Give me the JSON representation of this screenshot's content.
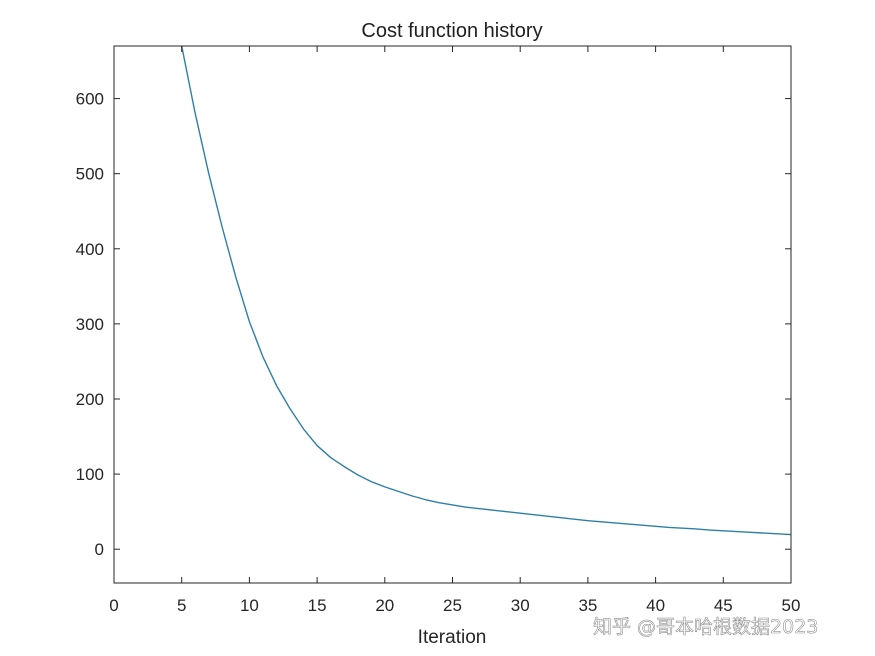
{
  "chart_data": {
    "type": "line",
    "title": "Cost function history",
    "xlabel": "Iteration",
    "ylabel": "",
    "xlim": [
      0,
      50
    ],
    "ylim": [
      -45,
      670
    ],
    "xticks": [
      0,
      5,
      10,
      15,
      20,
      25,
      30,
      35,
      40,
      45,
      50
    ],
    "yticks": [
      0,
      100,
      200,
      300,
      400,
      500,
      600
    ],
    "grid": false,
    "legend": "none",
    "series": [
      {
        "color": "#2e7fa8",
        "x": [
          5,
          6,
          7,
          8,
          9,
          10,
          11,
          12,
          13,
          14,
          15,
          16,
          17,
          18,
          19,
          20,
          21,
          22,
          23,
          24,
          25,
          26,
          27,
          28,
          29,
          30,
          31,
          32,
          33,
          34,
          35,
          36,
          37,
          38,
          39,
          40,
          41,
          42,
          43,
          44,
          45,
          46,
          47,
          48,
          49,
          50
        ],
        "y": [
          670,
          580,
          500,
          428,
          362,
          303,
          256,
          218,
          187,
          160,
          138,
          122,
          110,
          99,
          90,
          83,
          77,
          71,
          66,
          62,
          59,
          56,
          54,
          52,
          50,
          48,
          46,
          44,
          42,
          40,
          38,
          36.5,
          35,
          33.5,
          32,
          30.5,
          29,
          28,
          27,
          25.5,
          24.5,
          23.5,
          22.5,
          21.5,
          20.5,
          19.5
        ]
      }
    ]
  },
  "watermark": "知乎 @哥本哈根数据2023"
}
